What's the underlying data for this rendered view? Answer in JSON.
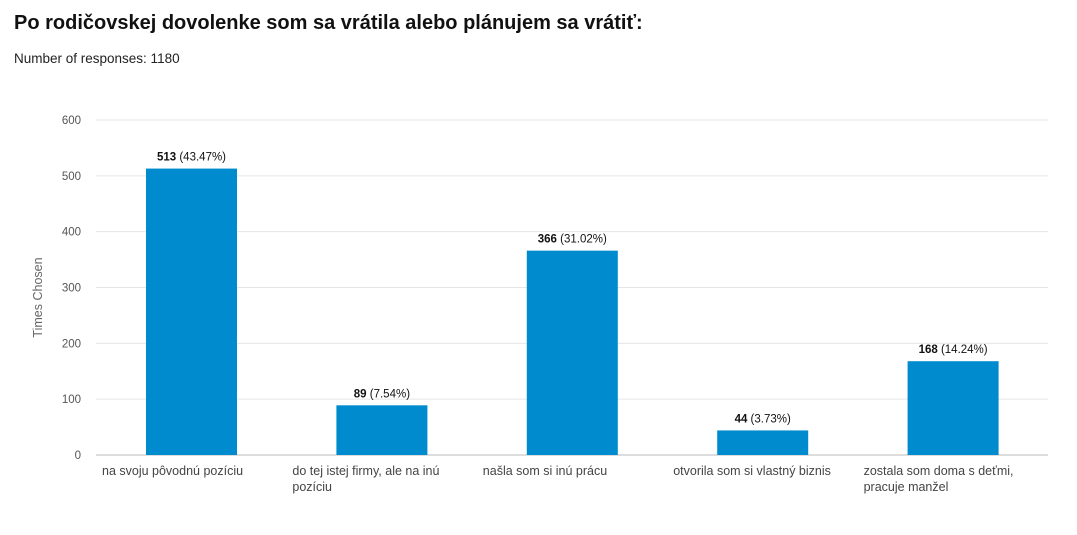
{
  "header": {
    "title": "Po rodičovskej dovolenke som sa vrátila alebo plánujem sa vrátiť:",
    "responses": "Number of responses: 1180"
  },
  "colors": {
    "bar": "#008bce",
    "grid": "#e6e6e6",
    "axis": "#bbbbbb"
  },
  "chart_data": {
    "type": "bar",
    "title": "",
    "ylabel": "Times Chosen",
    "xlabel": "",
    "ylim": [
      0,
      600
    ],
    "yticks": [
      0,
      100,
      200,
      300,
      400,
      500,
      600
    ],
    "grid": true,
    "categories": [
      [
        "na svoju pôvodnú pozíciu"
      ],
      [
        "do tej istej firmy, ale na inú",
        "pozíciu"
      ],
      [
        "našla som si inú prácu"
      ],
      [
        "otvorila som si vlastný biznis"
      ],
      [
        "zostala som doma s deťmi,",
        "pracuje manžel"
      ]
    ],
    "values": [
      513,
      89,
      366,
      44,
      168
    ],
    "percent_labels": [
      "(43.47%)",
      "(7.54%)",
      "(31.02%)",
      "(3.73%)",
      "(14.24%)"
    ]
  }
}
